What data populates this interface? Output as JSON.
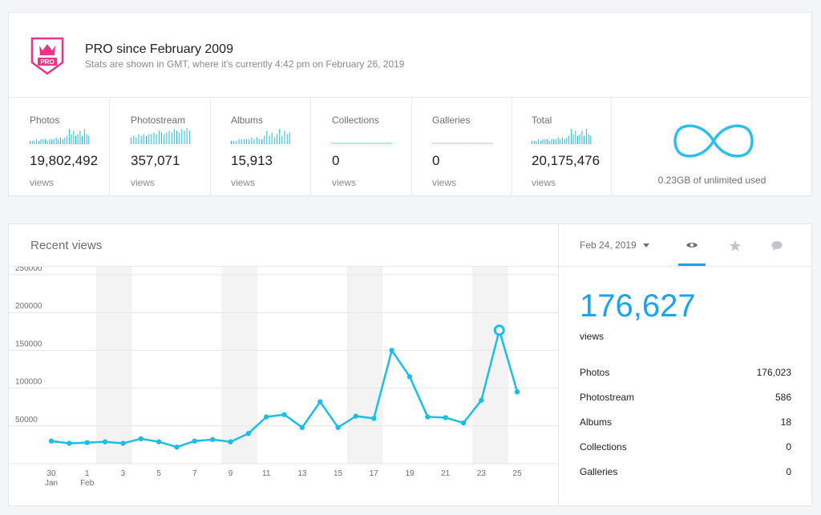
{
  "pro": {
    "title": "PRO since February 2009",
    "subtitle": "Stats are shown in GMT, where it's currently 4:42 pm on February 26, 2019",
    "badge_text": "PRO",
    "badge_color": "#e9348a"
  },
  "stats": [
    {
      "label": "Photos",
      "value": "19,802,492",
      "unit": "views"
    },
    {
      "label": "Photostream",
      "value": "357,071",
      "unit": "views"
    },
    {
      "label": "Albums",
      "value": "15,913",
      "unit": "views"
    },
    {
      "label": "Collections",
      "value": "0",
      "unit": "views"
    },
    {
      "label": "Galleries",
      "value": "0",
      "unit": "views"
    },
    {
      "label": "Total",
      "value": "20,175,476",
      "unit": "views"
    }
  ],
  "storage": {
    "text": "0.23GB of unlimited used",
    "icon": "infinity-icon"
  },
  "recent": {
    "title": "Recent views",
    "date": "Feb 24, 2019",
    "tabs": [
      "views-eye-icon",
      "favorites-star-icon",
      "comments-bubble-icon"
    ],
    "total": "176,627",
    "unit": "views",
    "breakdown": [
      {
        "label": "Photos",
        "value": "176,023"
      },
      {
        "label": "Photostream",
        "value": "586"
      },
      {
        "label": "Albums",
        "value": "18"
      },
      {
        "label": "Collections",
        "value": "0"
      },
      {
        "label": "Galleries",
        "value": "0"
      }
    ]
  },
  "colors": {
    "accent": "#1aa3ef",
    "line": "#1bbfe5",
    "weekend_band": "#f3f3f3"
  },
  "chart_data": {
    "type": "line",
    "ylim": [
      0,
      250000
    ],
    "y_ticks": [
      "250000",
      "200000",
      "150000",
      "100000",
      "50000"
    ],
    "x_tick_labels": [
      {
        "day": "30",
        "month": "Jan"
      },
      {
        "day": "1",
        "month": "Feb"
      },
      {
        "day": "3"
      },
      {
        "day": "5"
      },
      {
        "day": "7"
      },
      {
        "day": "9"
      },
      {
        "day": "11"
      },
      {
        "day": "13"
      },
      {
        "day": "15"
      },
      {
        "day": "17"
      },
      {
        "day": "19"
      },
      {
        "day": "21"
      },
      {
        "day": "23"
      },
      {
        "day": "25"
      }
    ],
    "x": [
      "Jan 30",
      "Jan 31",
      "Feb 1",
      "Feb 2",
      "Feb 3",
      "Feb 4",
      "Feb 5",
      "Feb 6",
      "Feb 7",
      "Feb 8",
      "Feb 9",
      "Feb 10",
      "Feb 11",
      "Feb 12",
      "Feb 13",
      "Feb 14",
      "Feb 15",
      "Feb 16",
      "Feb 17",
      "Feb 18",
      "Feb 19",
      "Feb 20",
      "Feb 21",
      "Feb 22",
      "Feb 23",
      "Feb 24",
      "Feb 25"
    ],
    "series": [
      {
        "values": [
          30000,
          27000,
          28000,
          29000,
          27000,
          33000,
          29000,
          22000,
          30000,
          32000,
          29000,
          40000,
          62000,
          65000,
          48000,
          82000,
          48000,
          63000,
          60000,
          150000,
          115000,
          62000,
          61000,
          54000,
          84000,
          176627,
          95000
        ]
      }
    ],
    "highlighted": "Feb 24",
    "weekend_bands": [
      [
        "Feb 2",
        "Feb 3"
      ],
      [
        "Feb 9",
        "Feb 10"
      ],
      [
        "Feb 16",
        "Feb 17"
      ],
      [
        "Feb 23",
        "Feb 24"
      ]
    ]
  }
}
